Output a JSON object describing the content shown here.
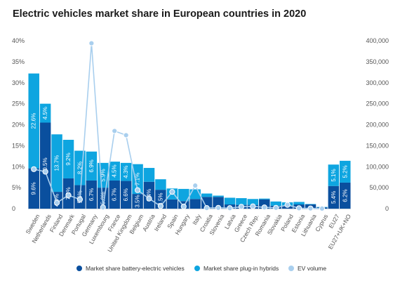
{
  "chart_data": {
    "type": "bar",
    "title": "Electric vehicles market share in European countries in 2020",
    "categories": [
      "Sweden",
      "Netherlands",
      "Finland",
      "Denmark",
      "Portugal",
      "Germany",
      "Luxembourg",
      "France",
      "United Kingdom",
      "Belgium",
      "Austria",
      "Ireland",
      "Spain",
      "Hungary",
      "Italy",
      "Croatia",
      "Slovenia",
      "Latvia",
      "Greece",
      "Czech Rep.",
      "Romania",
      "Slovakia",
      "Poland",
      "Estonia",
      "Lithuania",
      "Cyprus",
      "EU27",
      "EU27+UK+NO"
    ],
    "series": [
      {
        "name": "Market share battery-electric vehicles",
        "color": "#0a4f9e",
        "values": [
          9.6,
          20.5,
          4.0,
          7.2,
          5.6,
          6.7,
          5.0,
          6.7,
          6.6,
          3.5,
          6.4,
          4.5,
          2.2,
          1.8,
          2.3,
          2.8,
          2.8,
          1.0,
          0.9,
          0.9,
          2.2,
          0.7,
          0.6,
          1.0,
          1.0,
          0.3,
          5.4,
          6.2
        ],
        "labels": [
          "9.6%",
          "20.5%",
          "4.0%",
          "7.2%",
          "5.6%",
          "6.7%",
          "5.0%",
          "6.7%",
          "6.6%",
          "3.5%",
          "6.4%",
          "4.5%",
          "",
          "",
          "",
          "",
          "",
          "",
          "",
          "",
          "",
          "",
          "",
          "",
          "",
          "",
          "5.4%",
          "6.2%"
        ]
      },
      {
        "name": "Market share plug-in hybrids",
        "color": "#0ea5e0",
        "values": [
          22.6,
          4.5,
          13.7,
          9.2,
          8.2,
          6.9,
          5.9,
          4.5,
          4.3,
          7.1,
          3.3,
          2.5,
          2.6,
          2.9,
          2.3,
          0.8,
          0.3,
          1.6,
          1.6,
          1.4,
          0.2,
          1.0,
          0.9,
          0.6,
          0.1,
          0.1,
          5.1,
          5.2
        ],
        "labels": [
          "22.6%",
          "4.5%",
          "13.7%",
          "9.2%",
          "8.2%",
          "6.9%",
          "5.9%",
          "4.5%",
          "4.3%",
          "7.1%",
          "",
          "",
          "",
          "",
          "",
          "",
          "",
          "",
          "",
          "",
          "",
          "",
          "",
          "",
          "",
          "",
          "5.1%",
          "5.2%"
        ]
      }
    ],
    "line_series": {
      "name": "EV volume",
      "color": "#a9cfee",
      "axis": "right",
      "values": [
        94000,
        88000,
        14000,
        32000,
        22000,
        394000,
        3000,
        185000,
        175000,
        44000,
        24000,
        6000,
        40000,
        5000,
        55000,
        1500,
        2000,
        1200,
        4500,
        5500,
        3000,
        2000,
        9000,
        1000,
        500,
        200,
        null,
        null
      ]
    },
    "yleft": {
      "ylim": [
        0,
        40
      ],
      "ticks": [
        "0",
        "5%",
        "10%",
        "15%",
        "20%",
        "25%",
        "30%",
        "35%",
        "40%"
      ]
    },
    "yright": {
      "ylim": [
        0,
        400000
      ],
      "ticks": [
        "0",
        "50,000",
        "100,000",
        "150,000",
        "200,000",
        "250,000",
        "300,000",
        "350,000",
        "400,000"
      ]
    },
    "legend_position": "bottom",
    "grid": false
  }
}
